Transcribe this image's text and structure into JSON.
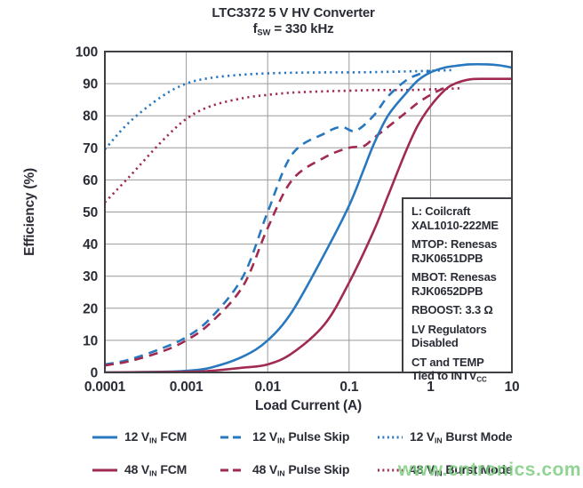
{
  "title": {
    "line1": "LTC3372 5 V HV Converter",
    "line2": {
      "pre": "f",
      "sub": "SW",
      "post": " = 330 kHz"
    }
  },
  "colors": {
    "blue": "#2878c0",
    "red": "#a02a50",
    "text": "#2b2d36",
    "grid": "#9a9a9a",
    "frame": "#3f3f44",
    "watermark": "#7ccc80"
  },
  "watermark": {
    "text": "www.cntronics.com"
  },
  "annotation": {
    "entries": [
      [
        "L: Coilcraft",
        "XAL1010-222ME"
      ],
      [
        "MTOP: Renesas",
        "RJK0651DPB"
      ],
      [
        "MBOT: Renesas",
        "RJK0652DPB"
      ],
      [
        "RBOOST: 3.3 Ω"
      ],
      [
        "LV Regulators",
        "Disabled"
      ],
      [
        "CT and TEMP",
        {
          "pre": "Tied to INTV",
          "sub": "CC"
        }
      ]
    ]
  },
  "chart_data": {
    "type": "line",
    "title": "LTC3372 5 V HV Converter",
    "subtitle": "fSW = 330 kHz",
    "xlabel": "Load Current (A)",
    "ylabel": "Efficiency (%)",
    "x_scale": "log",
    "xlim": [
      0.0001,
      10
    ],
    "ylim": [
      0,
      100
    ],
    "x_ticks": [
      "0.0001",
      "0.001",
      "0.01",
      "0.1",
      "1",
      "10"
    ],
    "y_ticks": [
      0,
      10,
      20,
      30,
      40,
      50,
      60,
      70,
      80,
      90,
      100
    ],
    "grid": true,
    "legend_position": "bottom",
    "series": [
      {
        "name": "12 VIN FCM",
        "label": {
          "pre": "12 V",
          "sub": "IN",
          "post": " FCM"
        },
        "color": "blue",
        "style": "solid",
        "points": [
          [
            0.0001,
            0
          ],
          [
            0.0005,
            0.2
          ],
          [
            0.001,
            0.5
          ],
          [
            0.002,
            1.5
          ],
          [
            0.005,
            5
          ],
          [
            0.01,
            10
          ],
          [
            0.02,
            19
          ],
          [
            0.05,
            37
          ],
          [
            0.1,
            52
          ],
          [
            0.15,
            63
          ],
          [
            0.2,
            71
          ],
          [
            0.3,
            80
          ],
          [
            0.5,
            87
          ],
          [
            0.7,
            91
          ],
          [
            1,
            93.5
          ],
          [
            1.5,
            95
          ],
          [
            2,
            95.5
          ],
          [
            3,
            96
          ],
          [
            5,
            96
          ],
          [
            7,
            95.7
          ],
          [
            10,
            95
          ]
        ]
      },
      {
        "name": "12 VIN Pulse Skip",
        "label": {
          "pre": "12 V",
          "sub": "IN",
          "post": " Pulse Skip"
        },
        "color": "blue",
        "style": "dashed",
        "points": [
          [
            0.0001,
            2.5
          ],
          [
            0.0002,
            4
          ],
          [
            0.0005,
            7.5
          ],
          [
            0.001,
            11
          ],
          [
            0.002,
            17
          ],
          [
            0.005,
            30
          ],
          [
            0.01,
            50
          ],
          [
            0.02,
            68
          ],
          [
            0.05,
            74.5
          ],
          [
            0.08,
            76.5
          ],
          [
            0.12,
            75.3
          ],
          [
            0.2,
            80
          ],
          [
            0.3,
            86
          ],
          [
            0.5,
            91
          ],
          [
            0.7,
            92.8
          ],
          [
            1,
            94
          ]
        ]
      },
      {
        "name": "12 VIN Burst Mode",
        "label": {
          "pre": "12 V",
          "sub": "IN",
          "post": " Burst Mode"
        },
        "color": "blue",
        "style": "dotted",
        "points": [
          [
            0.0001,
            69.5
          ],
          [
            0.0002,
            78
          ],
          [
            0.0005,
            86
          ],
          [
            0.001,
            90
          ],
          [
            0.002,
            91.8
          ],
          [
            0.005,
            92.8
          ],
          [
            0.01,
            93.2
          ],
          [
            0.02,
            93.4
          ],
          [
            0.05,
            93.5
          ],
          [
            0.1,
            93.5
          ],
          [
            0.2,
            93.6
          ],
          [
            0.5,
            93.8
          ],
          [
            1,
            94
          ],
          [
            1.8,
            94.2
          ]
        ]
      },
      {
        "name": "48 VIN FCM",
        "label": {
          "pre": "48 V",
          "sub": "IN",
          "post": " FCM"
        },
        "color": "red",
        "style": "solid",
        "points": [
          [
            0.0001,
            0
          ],
          [
            0.001,
            0.2
          ],
          [
            0.002,
            0.5
          ],
          [
            0.005,
            1.5
          ],
          [
            0.01,
            2.5
          ],
          [
            0.02,
            6
          ],
          [
            0.05,
            15
          ],
          [
            0.1,
            28
          ],
          [
            0.2,
            44
          ],
          [
            0.3,
            55
          ],
          [
            0.5,
            69
          ],
          [
            0.7,
            77
          ],
          [
            1,
            83
          ],
          [
            1.5,
            88
          ],
          [
            2,
            90
          ],
          [
            3,
            91.3
          ],
          [
            5,
            91.5
          ],
          [
            10,
            91.5
          ]
        ]
      },
      {
        "name": "48 VIN Pulse Skip",
        "label": {
          "pre": "48 V",
          "sub": "IN",
          "post": " Pulse Skip"
        },
        "color": "red",
        "style": "dashed",
        "points": [
          [
            0.0001,
            2.2
          ],
          [
            0.0002,
            3.5
          ],
          [
            0.0005,
            6.5
          ],
          [
            0.001,
            10
          ],
          [
            0.002,
            15.5
          ],
          [
            0.005,
            27
          ],
          [
            0.01,
            45
          ],
          [
            0.02,
            60
          ],
          [
            0.05,
            67
          ],
          [
            0.1,
            70
          ],
          [
            0.15,
            70.5
          ],
          [
            0.2,
            73
          ],
          [
            0.3,
            76.5
          ],
          [
            0.5,
            81
          ],
          [
            0.7,
            84
          ],
          [
            1,
            86.5
          ],
          [
            1.3,
            88
          ],
          [
            1.6,
            89
          ]
        ]
      },
      {
        "name": "48 VIN Burst Mode",
        "label": {
          "pre": "48 V",
          "sub": "IN",
          "post": " Burst Mode"
        },
        "color": "red",
        "style": "dotted",
        "points": [
          [
            0.0001,
            53
          ],
          [
            0.0002,
            61
          ],
          [
            0.0005,
            72
          ],
          [
            0.001,
            79
          ],
          [
            0.002,
            83
          ],
          [
            0.005,
            85.5
          ],
          [
            0.01,
            86.5
          ],
          [
            0.02,
            87.2
          ],
          [
            0.05,
            87.6
          ],
          [
            0.1,
            87.8
          ],
          [
            0.2,
            88
          ],
          [
            0.5,
            88
          ],
          [
            1,
            88.2
          ],
          [
            1.6,
            88.4
          ],
          [
            2.5,
            88.6
          ]
        ]
      }
    ]
  }
}
